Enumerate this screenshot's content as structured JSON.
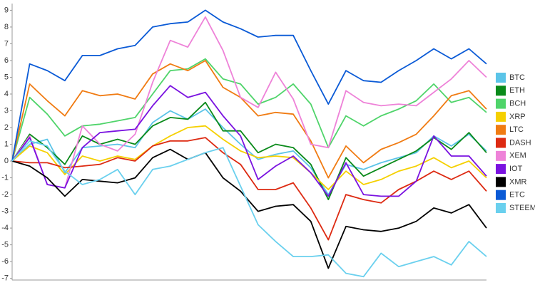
{
  "chart_data": {
    "type": "line",
    "categories": [
      null,
      null,
      null,
      null,
      null,
      null,
      null,
      null,
      null,
      null,
      null,
      null,
      null,
      null,
      null,
      null,
      null,
      null,
      null,
      null,
      null,
      null,
      null,
      null,
      null,
      null,
      null,
      null
    ],
    "series": [
      {
        "name": "BTC",
        "color": "#5bc4e8",
        "values": [
          0,
          1.0,
          1.3,
          -0.7,
          0.8,
          0.9,
          1.0,
          0.8,
          2.3,
          3.0,
          2.5,
          3.1,
          2.0,
          1.0,
          0.1,
          0.4,
          0.6,
          -0.4,
          -2.0,
          -0.2,
          -0.5,
          -0.1,
          0.2,
          0.5,
          1.5,
          0.9,
          1.6,
          0.6
        ]
      },
      {
        "name": "ETH",
        "color": "#0a8a1a",
        "values": [
          0,
          1.6,
          0.8,
          -0.2,
          1.5,
          1.0,
          1.3,
          1.0,
          2.1,
          2.6,
          2.5,
          3.5,
          1.8,
          1.8,
          0.5,
          1.0,
          0.8,
          -0.2,
          -2.3,
          0.2,
          -0.9,
          -0.4,
          0.1,
          0.6,
          1.4,
          0.7,
          1.7,
          0.5
        ]
      },
      {
        "name": "BCH",
        "color": "#4fd46a",
        "values": [
          0,
          3.8,
          2.8,
          1.5,
          2.1,
          2.2,
          2.4,
          2.6,
          4.0,
          5.4,
          5.5,
          6.1,
          4.9,
          4.6,
          3.4,
          3.8,
          4.6,
          3.4,
          0.8,
          2.7,
          2.1,
          2.7,
          3.1,
          3.6,
          4.6,
          3.5,
          3.8,
          2.9
        ]
      },
      {
        "name": "XRP",
        "color": "#f5d000",
        "values": [
          0,
          0.9,
          0.5,
          -0.8,
          0.3,
          0.0,
          0.3,
          0.1,
          0.9,
          1.5,
          2.0,
          2.1,
          1.3,
          0.6,
          0.2,
          0.3,
          0.2,
          -0.7,
          -1.7,
          -0.6,
          -1.4,
          -1.1,
          -0.6,
          -0.3,
          0.2,
          -0.4,
          0.0,
          -1.0
        ]
      },
      {
        "name": "LTC",
        "color": "#f07b12",
        "values": [
          0,
          4.6,
          3.6,
          2.7,
          4.2,
          3.9,
          4.0,
          3.7,
          5.2,
          5.8,
          5.4,
          6.0,
          4.4,
          3.8,
          2.7,
          2.9,
          2.8,
          1.2,
          -1.0,
          0.9,
          -0.1,
          0.7,
          1.1,
          1.6,
          2.7,
          3.9,
          4.2,
          3.1
        ]
      },
      {
        "name": "DASH",
        "color": "#dd2a12",
        "values": [
          0,
          -0.1,
          -0.1,
          -0.4,
          -0.3,
          -0.2,
          0.2,
          0.0,
          0.9,
          1.2,
          1.2,
          1.4,
          0.5,
          -0.2,
          -1.7,
          -1.7,
          -1.3,
          -2.8,
          -4.7,
          -2.0,
          -2.3,
          -2.5,
          -1.7,
          -1.2,
          -0.6,
          -1.1,
          -0.6,
          -1.8
        ]
      },
      {
        "name": "XEM",
        "color": "#ee82d8",
        "values": [
          0,
          1.5,
          -1.4,
          -1.6,
          2.1,
          1.0,
          0.6,
          1.6,
          4.7,
          7.2,
          6.8,
          8.6,
          6.6,
          3.8,
          3.2,
          5.3,
          3.7,
          1.0,
          0.8,
          4.2,
          3.5,
          3.3,
          3.4,
          3.3,
          4.1,
          4.9,
          6.0,
          5.0
        ]
      },
      {
        "name": "IOT",
        "color": "#7a12e0",
        "values": [
          0,
          1.4,
          -1.4,
          -1.6,
          0.8,
          1.7,
          1.8,
          1.9,
          3.3,
          4.5,
          3.8,
          4.1,
          2.7,
          1.5,
          -1.1,
          -0.3,
          0.3,
          -0.7,
          -2.1,
          -0.1,
          -2.0,
          -2.1,
          -2.1,
          -1.2,
          1.5,
          0.3,
          0.3,
          -0.9
        ]
      },
      {
        "name": "XMR",
        "color": "#000000",
        "values": [
          0,
          -0.3,
          -1.0,
          -2.1,
          -1.1,
          -1.2,
          -1.3,
          -1.0,
          0.2,
          0.7,
          0.1,
          0.5,
          -1.0,
          -1.8,
          -3.0,
          -2.7,
          -2.6,
          -3.6,
          -6.4,
          -3.9,
          -4.1,
          -4.2,
          -4.0,
          -3.6,
          -2.8,
          -3.1,
          -2.6,
          -4.0
        ]
      },
      {
        "name": "ETC",
        "color": "#0a5ad6",
        "values": [
          0,
          5.8,
          5.4,
          4.8,
          6.3,
          6.3,
          6.7,
          6.9,
          8.0,
          8.2,
          8.3,
          9.0,
          8.3,
          7.9,
          7.4,
          7.5,
          7.5,
          5.4,
          3.4,
          5.4,
          4.8,
          4.7,
          5.4,
          6.0,
          6.7,
          6.1,
          6.7,
          5.8
        ]
      },
      {
        "name": "STEEM",
        "color": "#6ad0ee",
        "values": [
          0,
          1.2,
          0.9,
          -0.6,
          -1.4,
          -1.1,
          -0.5,
          -2.0,
          -0.5,
          -0.3,
          0.1,
          0.5,
          0.8,
          -1.5,
          -3.8,
          -4.8,
          -5.7,
          -5.7,
          -5.6,
          -6.7,
          -6.9,
          -5.5,
          -6.3,
          -6.0,
          -5.7,
          -6.2,
          -4.8,
          -5.7
        ]
      }
    ],
    "ylim": [
      -7.1,
      9.4
    ],
    "yticks": [
      -7,
      -6,
      -5,
      -4,
      -3,
      -2,
      -1,
      0,
      1,
      2,
      3,
      4,
      5,
      6,
      7,
      8,
      9
    ],
    "legend": "right"
  }
}
